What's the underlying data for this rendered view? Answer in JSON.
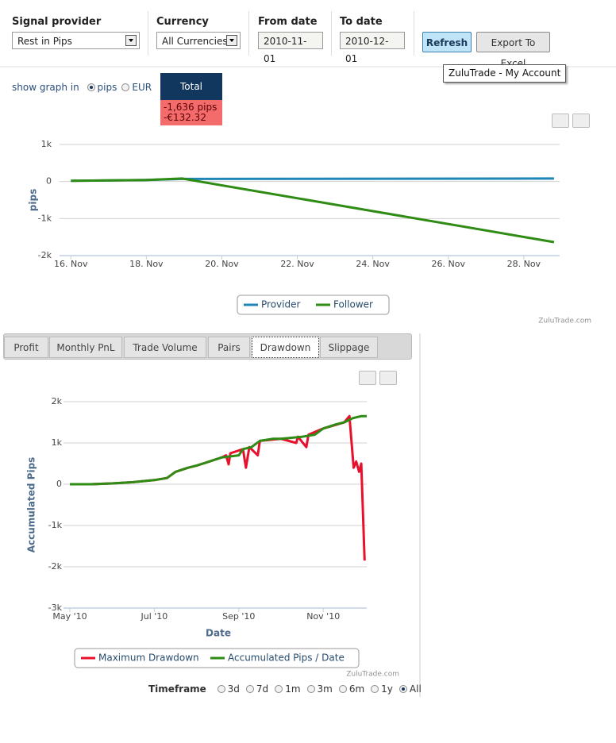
{
  "filters": [
    {
      "label": "Signal provider",
      "value": "Rest in Pips"
    },
    {
      "label": "Currency",
      "value": "All Currencies"
    },
    {
      "label": "From date",
      "value": "2010-11-01"
    },
    {
      "label": "To date",
      "value": "2010-12-01"
    }
  ],
  "buttons": [
    "Refresh",
    "Export To Excel"
  ],
  "tooltip": "ZuluTrade - My Account",
  "show_graph": {
    "label": "show graph in",
    "options": [
      "pips",
      "EUR"
    ],
    "selected": 0
  },
  "total": {
    "header": "Total",
    "pips": "-1,636 pips",
    "eur": "-€132.32"
  },
  "chart_data": [
    {
      "type": "line",
      "ylabel": "pips",
      "xlim": [
        15.7,
        28.95
      ],
      "ylim": [
        -2000,
        1000
      ],
      "xticks": [
        {
          "value": 16,
          "label": "16. Nov"
        },
        {
          "value": 18,
          "label": "18. Nov"
        },
        {
          "value": 20,
          "label": "20. Nov"
        },
        {
          "value": 22,
          "label": "22. Nov"
        },
        {
          "value": 24,
          "label": "24. Nov"
        },
        {
          "value": 26,
          "label": "26. Nov"
        },
        {
          "value": 28,
          "label": "28. Nov"
        }
      ],
      "yticks": [
        {
          "value": 1000,
          "label": "1k"
        },
        0,
        {
          "value": -1000,
          "label": "-1k"
        },
        {
          "value": -2000,
          "label": "-2k"
        }
      ],
      "grid": true,
      "series": [
        {
          "name": "Provider",
          "color": "#1f86b8",
          "x": [
            16,
            18,
            18.95,
            28.8
          ],
          "values": [
            20,
            40,
            70,
            80
          ]
        },
        {
          "name": "Follower",
          "color": "#2e8b14",
          "x": [
            16,
            18,
            18.95,
            28.8
          ],
          "values": [
            20,
            40,
            80,
            -1636
          ]
        }
      ],
      "credit": "ZuluTrade.com"
    },
    {
      "type": "line",
      "xlabel": "Date",
      "ylabel": "Accumulated Pips",
      "xlim": [
        5,
        12.03
      ],
      "ylim": [
        -3000,
        2000
      ],
      "xticks": [
        {
          "value": 5,
          "label": "May '10"
        },
        {
          "value": 7,
          "label": "Jul '10"
        },
        {
          "value": 9,
          "label": "Sep '10"
        },
        {
          "value": 11,
          "label": "Nov '10"
        }
      ],
      "yticks": [
        {
          "value": 2000,
          "label": "2k"
        },
        {
          "value": 1000,
          "label": "1k"
        },
        0,
        {
          "value": -1000,
          "label": "-1k"
        },
        {
          "value": -2000,
          "label": "-2k"
        },
        {
          "value": -3000,
          "label": "-3k"
        }
      ],
      "grid": true,
      "series": [
        {
          "name": "Maximum Drawdown",
          "color": "#e8112d",
          "x": [
            5,
            5.5,
            6,
            6.5,
            7,
            7.3,
            7.5,
            7.8,
            8,
            8.3,
            8.6,
            8.7,
            8.76,
            8.8,
            9.1,
            9.17,
            9.25,
            9.45,
            9.5,
            10,
            10.36,
            10.4,
            10.6,
            10.65,
            11,
            11.5,
            11.62,
            11.72,
            11.78,
            11.85,
            11.9,
            11.98
          ],
          "values": [
            0,
            0,
            20,
            50,
            100,
            150,
            300,
            400,
            450,
            550,
            650,
            700,
            480,
            750,
            850,
            400,
            900,
            700,
            1050,
            1100,
            1000,
            1150,
            900,
            1200,
            1350,
            1500,
            1650,
            400,
            550,
            300,
            500,
            -1850
          ]
        },
        {
          "name": "Accumulated Pips / Date",
          "color": "#2e8b14",
          "x": [
            5,
            5.5,
            6,
            6.5,
            7,
            7.3,
            7.5,
            7.8,
            8,
            8.3,
            8.6,
            9,
            9.1,
            9.3,
            9.5,
            9.8,
            10,
            10.5,
            10.8,
            11,
            11.3,
            11.5,
            11.7,
            11.9,
            12.03
          ],
          "values": [
            0,
            0,
            20,
            50,
            100,
            150,
            300,
            400,
            450,
            550,
            650,
            700,
            850,
            900,
            1050,
            1100,
            1100,
            1150,
            1200,
            1350,
            1450,
            1500,
            1600,
            1650,
            1650
          ]
        }
      ],
      "credit": "ZuluTrade.com"
    }
  ],
  "tabs": [
    "Profit",
    "Monthly PnL",
    "Trade Volume",
    "Pairs",
    "Drawdown",
    "Slippage"
  ],
  "active_tab": 4,
  "timeframe": {
    "label": "Timeframe",
    "options": [
      "3d",
      "7d",
      "1m",
      "3m",
      "6m",
      "1y",
      "All"
    ],
    "selected": 6
  }
}
